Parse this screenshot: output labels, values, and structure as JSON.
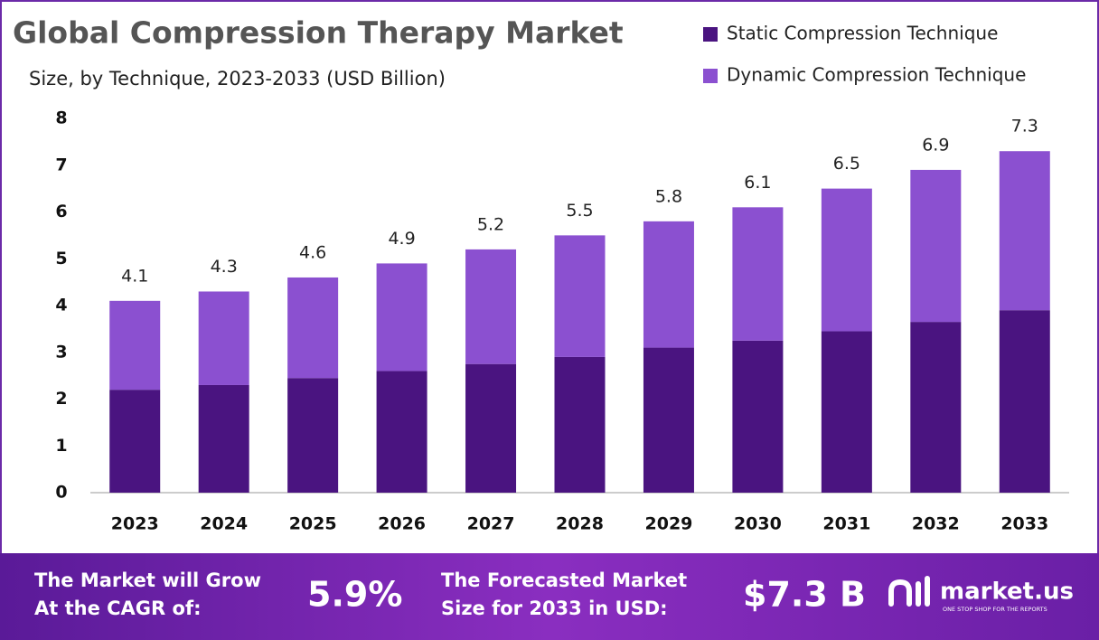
{
  "chart_data": {
    "type": "stacked_bar",
    "title": "Global  Compression Therapy Market",
    "subtitle": "Size, by Technique, 2023-2033 (USD Billion)",
    "categories": [
      "2023",
      "2024",
      "2025",
      "2026",
      "2027",
      "2028",
      "2029",
      "2030",
      "2031",
      "2032",
      "2033"
    ],
    "series": [
      {
        "name": "Static Compression Technique",
        "color": "#4a1480",
        "values": [
          2.2,
          2.3,
          2.45,
          2.6,
          2.75,
          2.9,
          3.1,
          3.25,
          3.45,
          3.65,
          3.9
        ]
      },
      {
        "name": "Dynamic Compression Technique",
        "color": "#8b50d0",
        "values": [
          1.9,
          2.0,
          2.15,
          2.3,
          2.45,
          2.6,
          2.7,
          2.85,
          3.05,
          3.25,
          3.4
        ]
      }
    ],
    "totals": [
      4.1,
      4.3,
      4.6,
      4.9,
      5.2,
      5.5,
      5.8,
      6.1,
      6.5,
      6.9,
      7.3
    ],
    "ylim": [
      0,
      8
    ],
    "yticks": [
      0,
      1,
      2,
      3,
      4,
      5,
      6,
      7,
      8
    ],
    "grid": false,
    "legend": "top-right"
  },
  "footer": {
    "cagr_label": [
      "The Market will Grow",
      "At the CAGR of:"
    ],
    "cagr_value": "5.9%",
    "forecast_label": [
      "The Forecasted Market",
      "Size for 2033 in USD:"
    ],
    "forecast_value": "$7.3 B",
    "brand": "market.us",
    "tagline": "ONE STOP SHOP FOR THE REPORTS"
  }
}
